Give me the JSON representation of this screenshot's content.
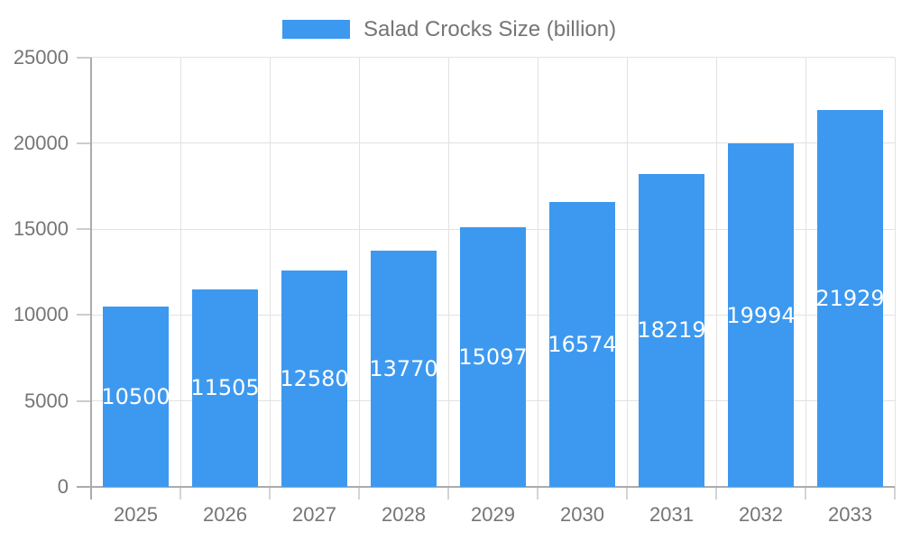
{
  "legend": {
    "label": "Salad Crocks Size (billion)"
  },
  "colors": {
    "bar": "#3d99ef",
    "axis_text": "#757575",
    "value_label": "#ffffff",
    "gridline": "#e2e2e2",
    "axis_line": "#ababab",
    "background": "#ffffff"
  },
  "chart_data": {
    "type": "bar",
    "title": "",
    "legend_entries": [
      "Salad Crocks Size (billion)"
    ],
    "legend_position": "top",
    "categories": [
      "2025",
      "2026",
      "2027",
      "2028",
      "2029",
      "2030",
      "2031",
      "2032",
      "2033"
    ],
    "series": [
      {
        "name": "Salad Crocks Size (billion)",
        "values": [
          10500,
          11505,
          12580,
          13770,
          15097,
          16574,
          18219,
          19994,
          21929
        ]
      }
    ],
    "xlabel": "",
    "ylabel": "",
    "ylim": [
      0,
      25000
    ],
    "yticks": [
      0,
      5000,
      10000,
      15000,
      20000,
      25000
    ],
    "grid": true,
    "value_labels": "inside-center, white, horizontally and vertically centered in each bar"
  }
}
